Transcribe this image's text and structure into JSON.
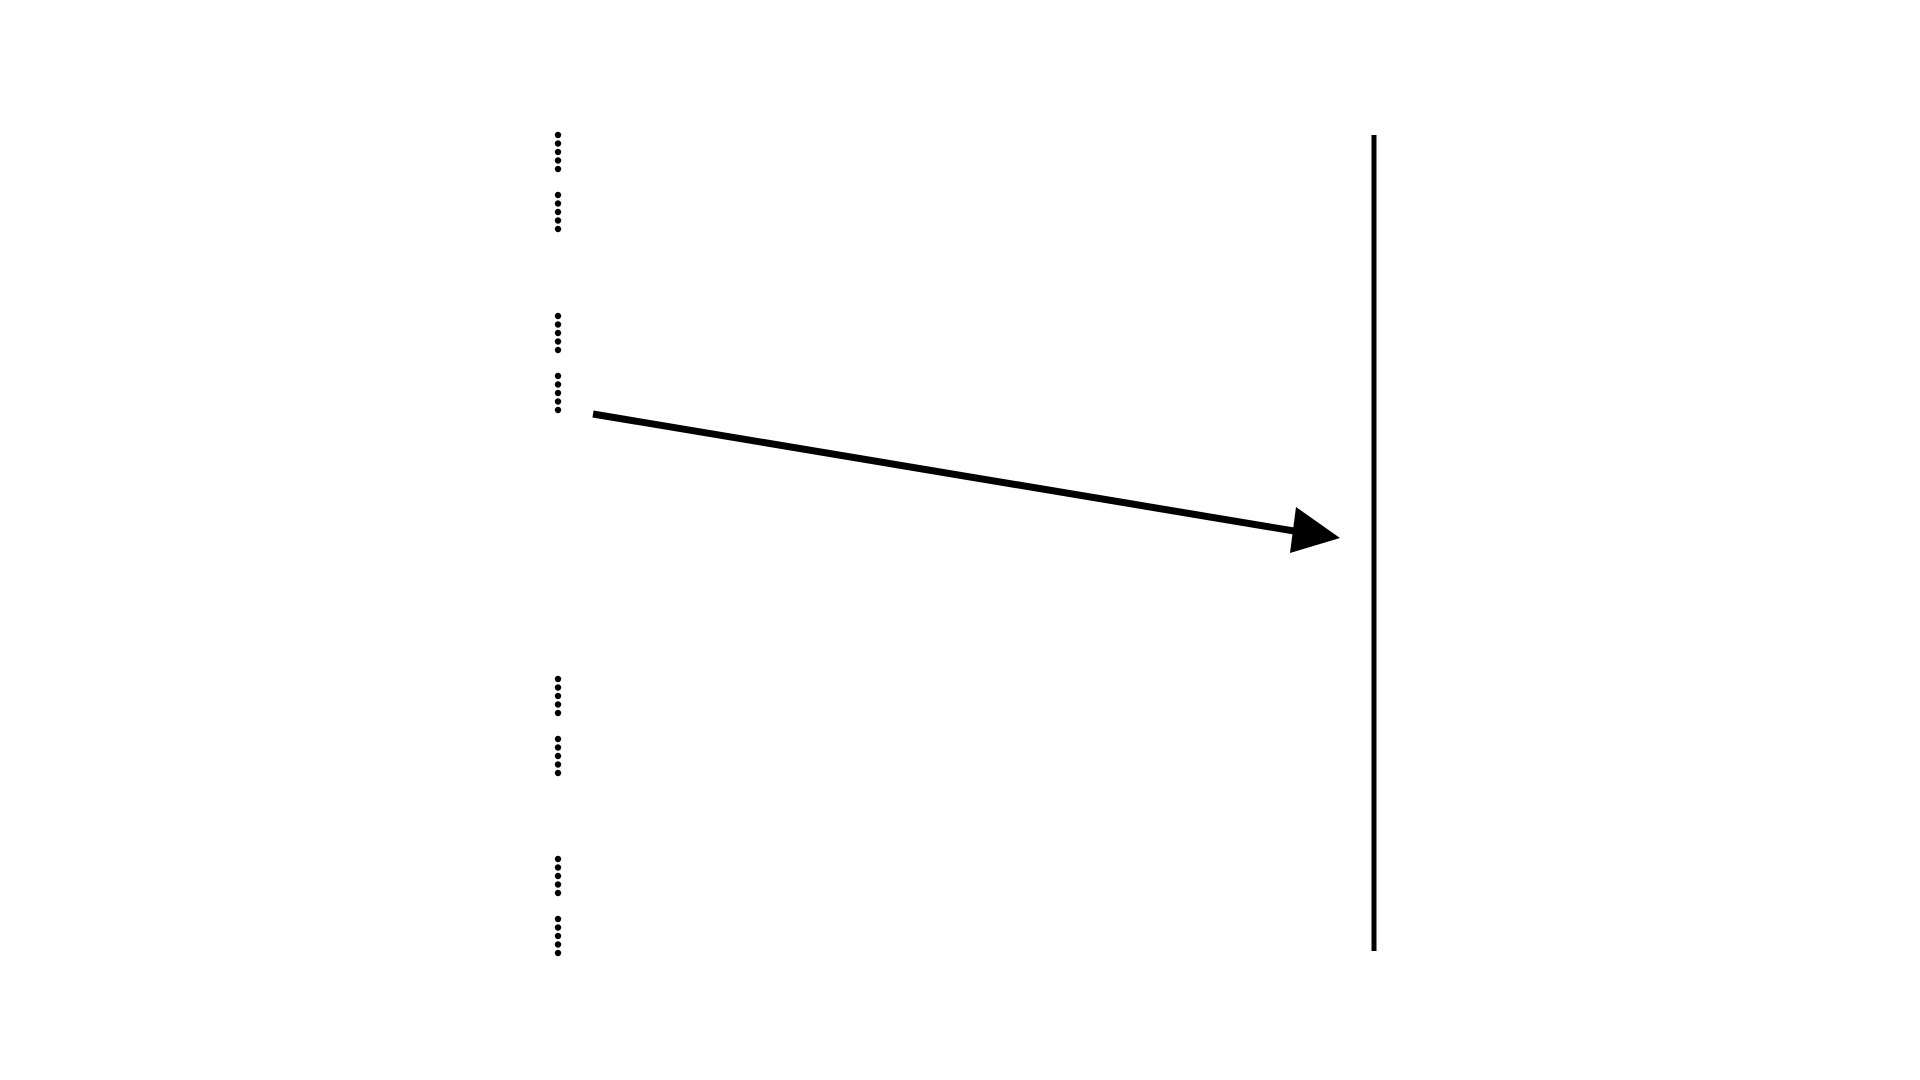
{
  "diagram": {
    "background": "#ffffff",
    "stroke_color": "#000000",
    "dot_groups": 8,
    "dots_per_group": 5,
    "arrow": {
      "direction": "left-to-right",
      "head": "filled-triangle"
    },
    "vertical_line": {
      "style": "solid"
    }
  }
}
